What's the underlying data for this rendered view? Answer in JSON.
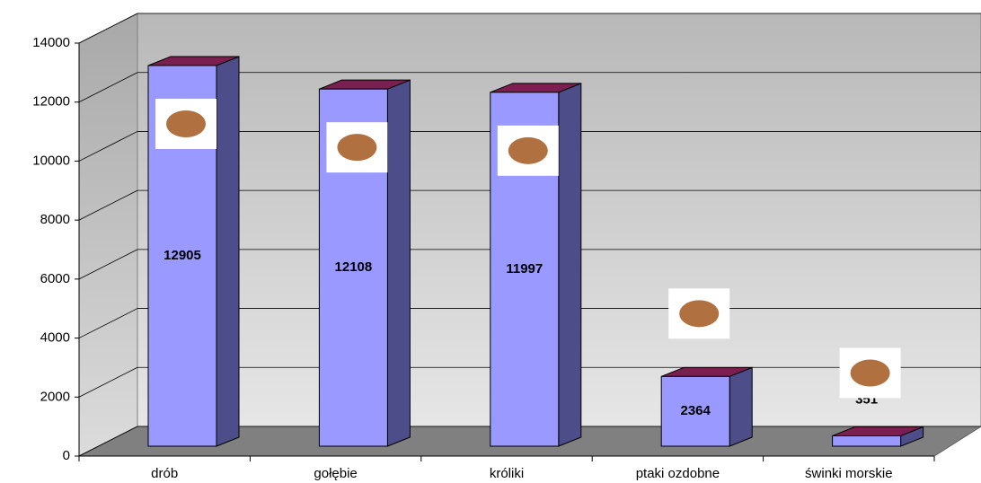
{
  "chart_data": {
    "type": "bar",
    "categories": [
      "drób",
      "gołębie",
      "króliki",
      "ptaki ozdobne",
      "świnki morskie"
    ],
    "values": [
      12905,
      12108,
      11997,
      2364,
      351
    ],
    "color": "#9999ff",
    "ylim": [
      0,
      14000
    ],
    "yticks": [
      0,
      2000,
      4000,
      6000,
      8000,
      10000,
      12000,
      14000
    ],
    "grid": true
  }
}
